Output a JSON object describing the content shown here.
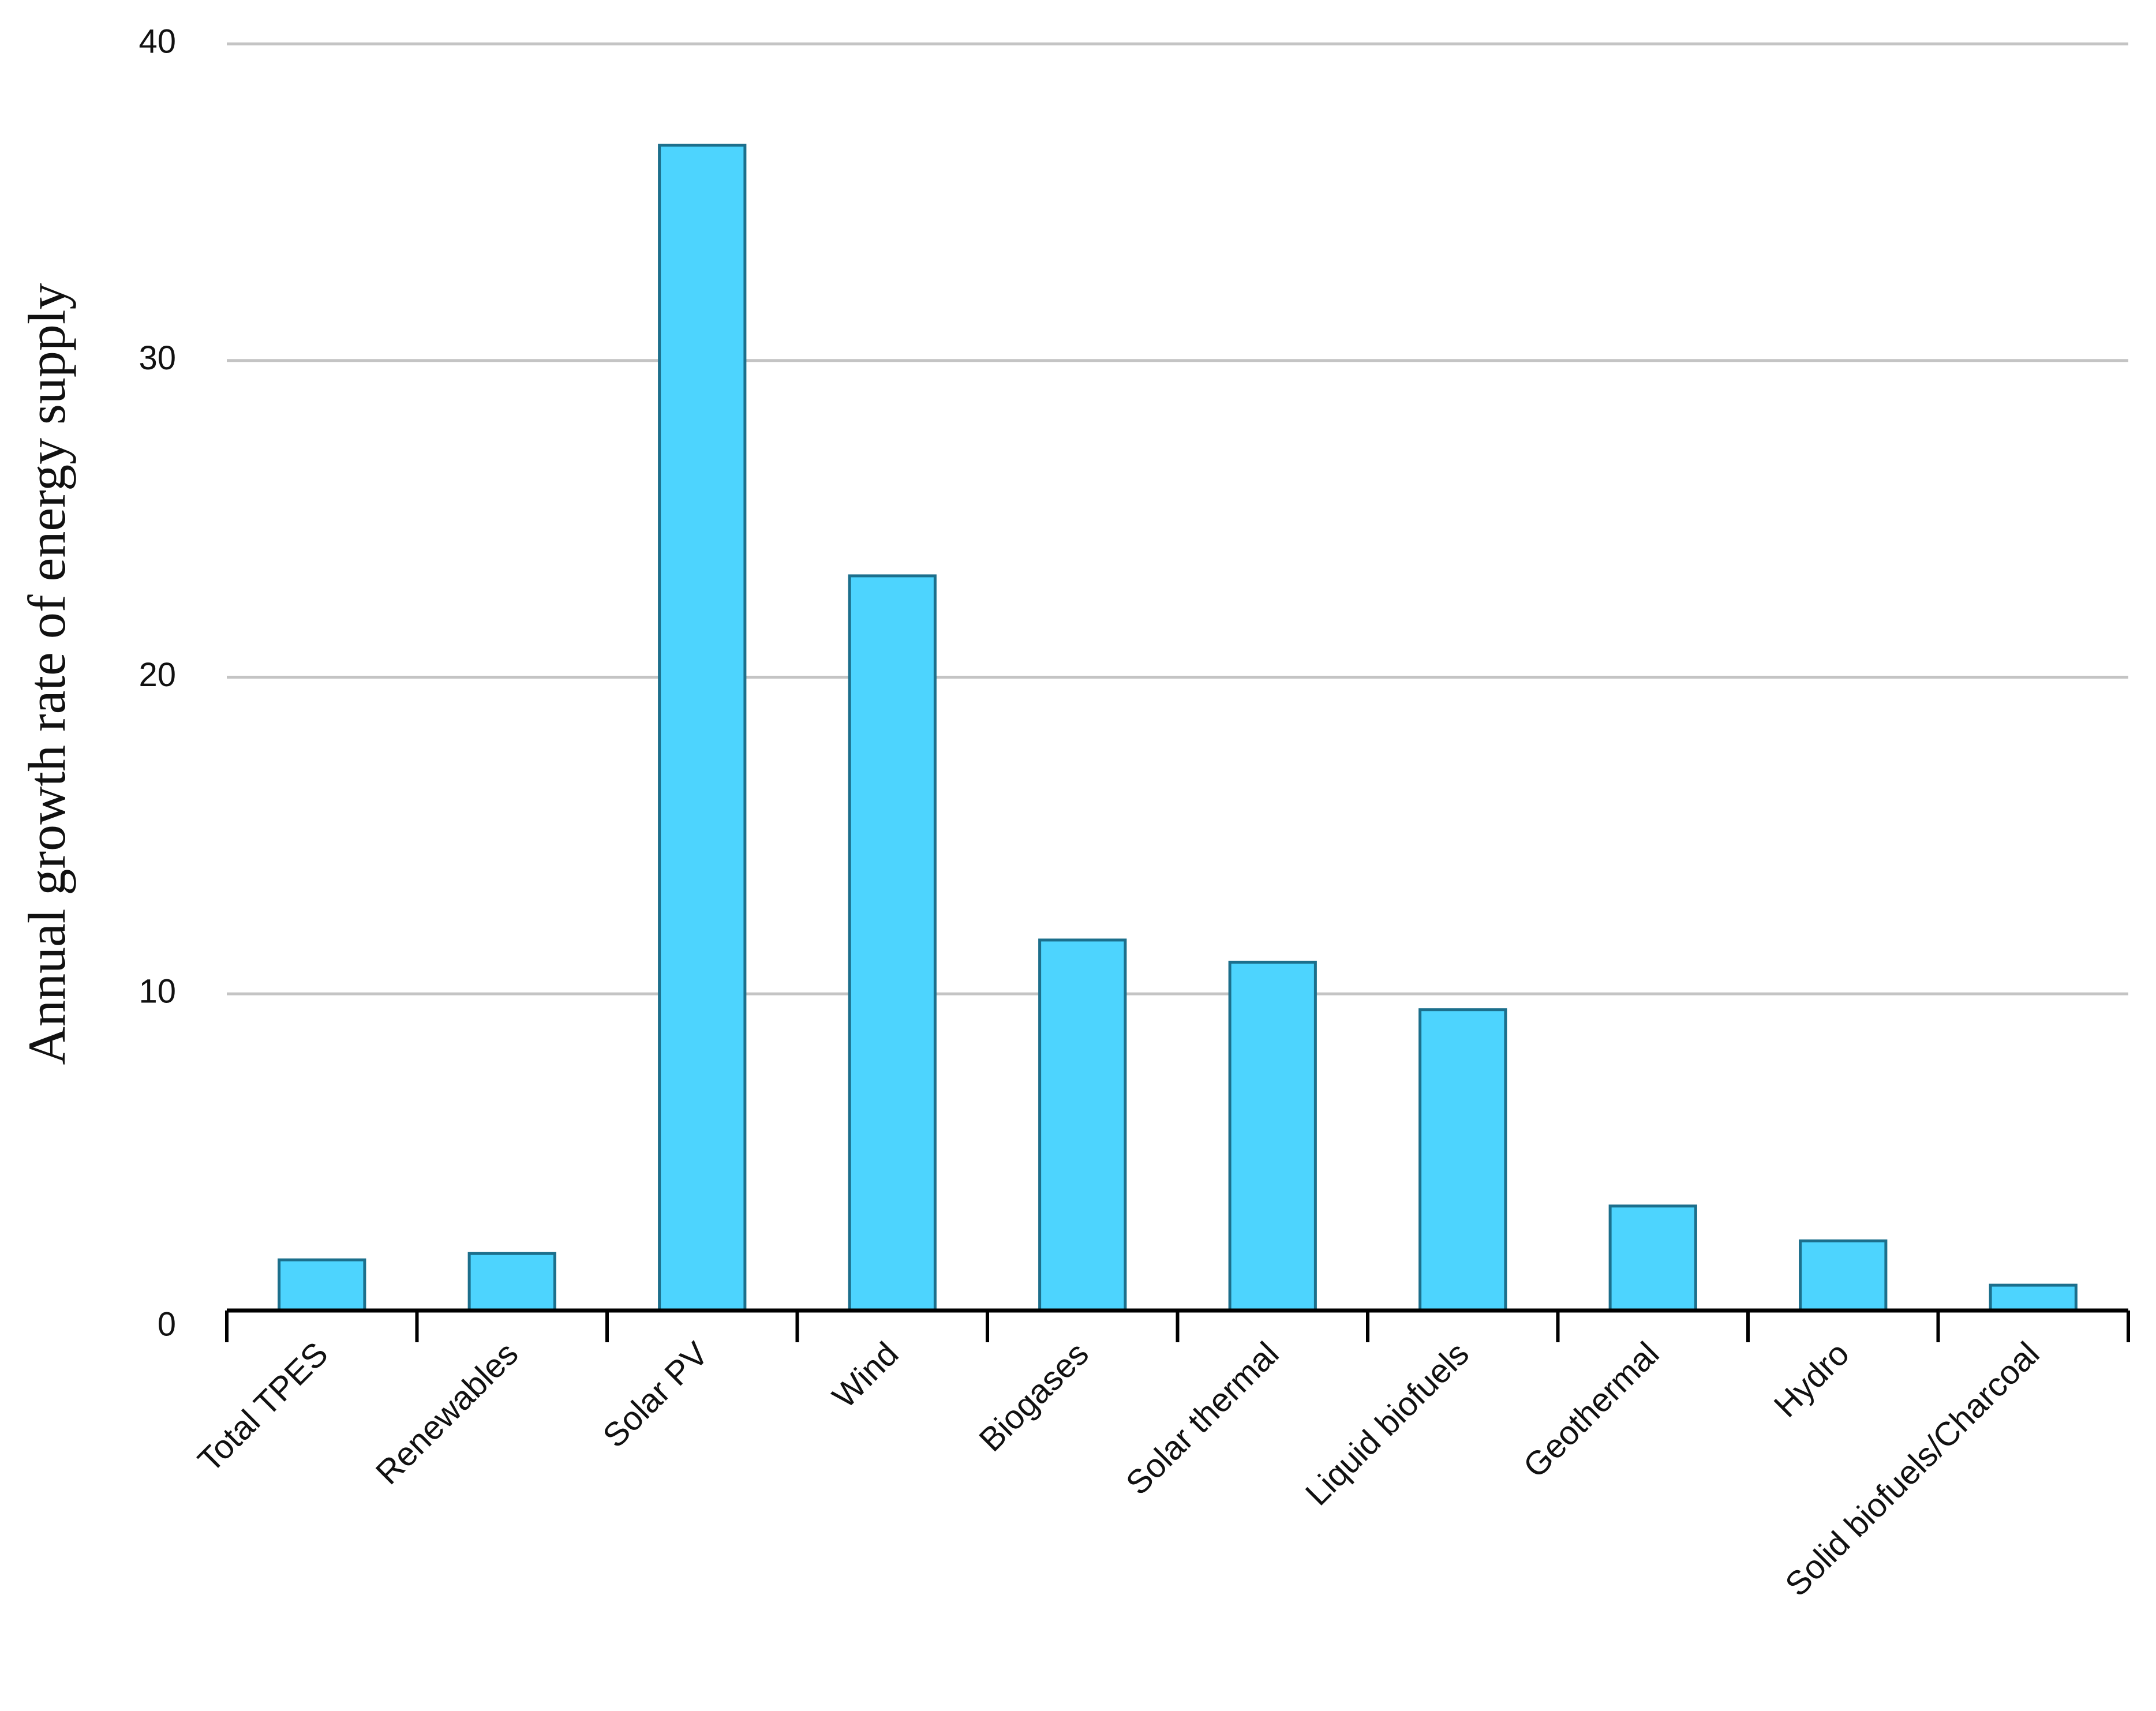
{
  "chart_data": {
    "type": "bar",
    "y_label": "Annual growth rate of energy supply",
    "categories": [
      "Total TPES",
      "Renewables",
      "Solar PV",
      "Wind",
      "Biogases",
      "Solar thermal",
      "Liquid biofuels",
      "Geothermal",
      "Hydro",
      "Solid biofuels/Charcoal"
    ],
    "values": [
      1.6,
      1.8,
      36.8,
      23.2,
      11.7,
      11.0,
      9.5,
      3.3,
      2.2,
      0.8
    ],
    "color": "#4dd4fe",
    "ylim": [
      0,
      40
    ],
    "yticks": [
      0,
      10,
      20,
      30,
      40
    ],
    "grid": true
  }
}
